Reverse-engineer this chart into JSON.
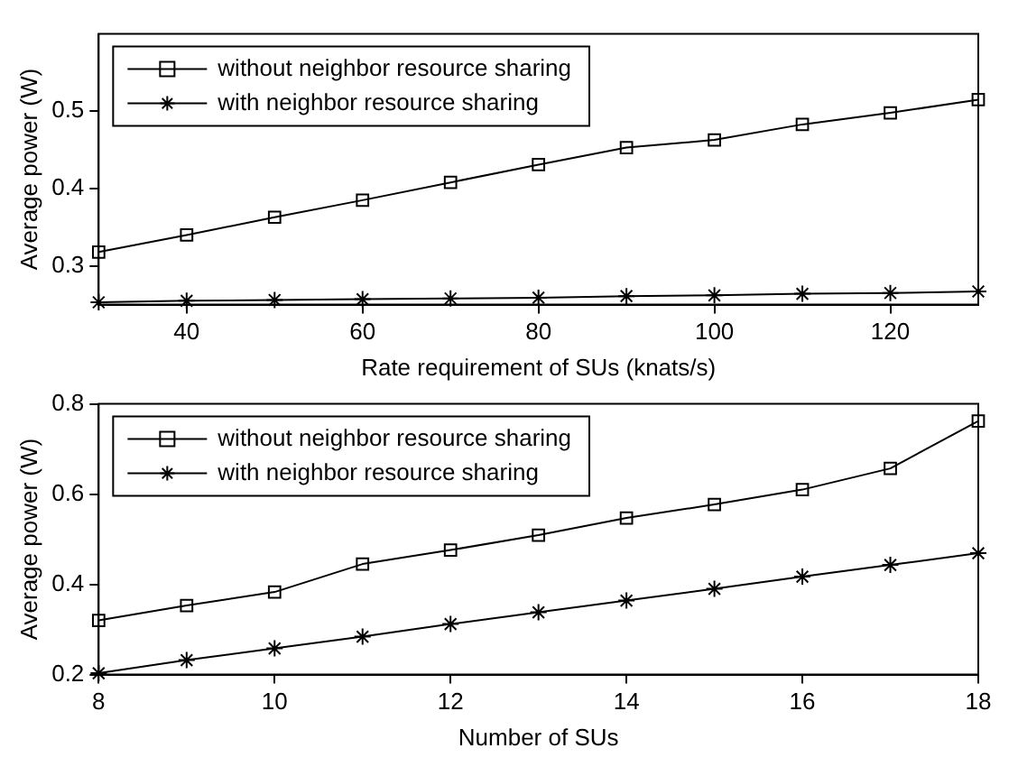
{
  "chart_data": [
    {
      "type": "line",
      "xlabel": "Rate requirement of SUs (knats/s)",
      "ylabel": "Average power (W)",
      "x": [
        30,
        40,
        50,
        60,
        70,
        80,
        90,
        100,
        110,
        120,
        130
      ],
      "xlim": [
        30,
        130
      ],
      "xticks": [
        40,
        60,
        80,
        100,
        120
      ],
      "ylim": [
        0.25,
        0.6
      ],
      "yticks": [
        0.3,
        0.4,
        0.5
      ],
      "grid": false,
      "legend": "top left",
      "series": [
        {
          "name": "without neighbor resource sharing",
          "color": "#000000",
          "marker": "square",
          "values": [
            0.318,
            0.34,
            0.363,
            0.385,
            0.408,
            0.431,
            0.453,
            0.463,
            0.483,
            0.498,
            0.515
          ]
        },
        {
          "name": "with neighbor resource sharing",
          "color": "#000000",
          "marker": "cross",
          "values": [
            0.253,
            0.255,
            0.256,
            0.257,
            0.258,
            0.259,
            0.261,
            0.262,
            0.264,
            0.265,
            0.267
          ]
        }
      ]
    },
    {
      "type": "line",
      "xlabel": "Number of SUs",
      "ylabel": "Average power (W)",
      "x": [
        8,
        9,
        10,
        11,
        12,
        13,
        14,
        15,
        16,
        17,
        18
      ],
      "xlim": [
        8,
        18
      ],
      "xticks": [
        8,
        10,
        12,
        14,
        16,
        18
      ],
      "ylim": [
        0.2,
        0.8
      ],
      "yticks": [
        0.2,
        0.4,
        0.6,
        0.8
      ],
      "grid": false,
      "legend": "top left",
      "series": [
        {
          "name": "without neighbor resource sharing",
          "color": "#000000",
          "marker": "square",
          "values": [
            0.32,
            0.353,
            0.383,
            0.445,
            0.476,
            0.509,
            0.547,
            0.577,
            0.61,
            0.657,
            0.762
          ]
        },
        {
          "name": "with neighbor resource sharing",
          "color": "#000000",
          "marker": "cross",
          "values": [
            0.203,
            0.232,
            0.258,
            0.284,
            0.312,
            0.338,
            0.364,
            0.39,
            0.417,
            0.443,
            0.469
          ]
        }
      ]
    }
  ]
}
